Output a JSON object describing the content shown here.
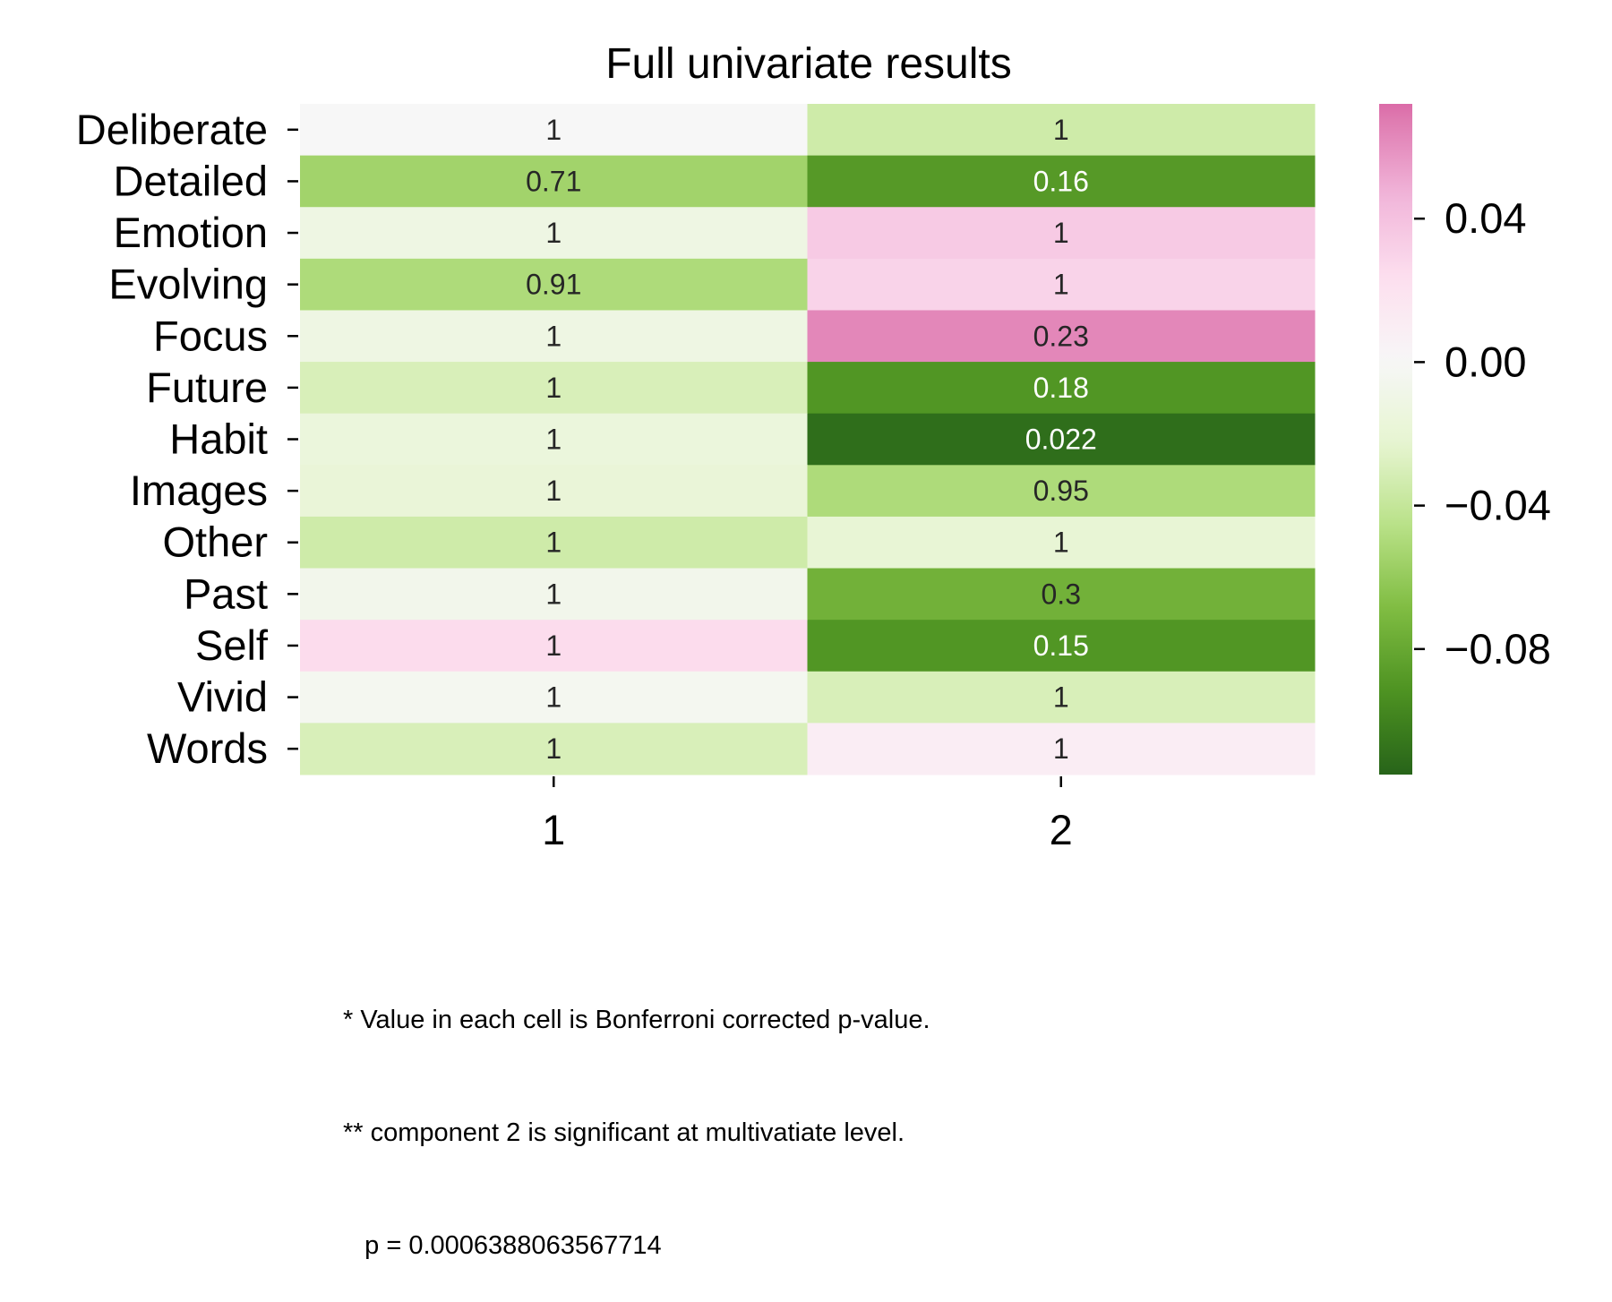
{
  "chart_data": {
    "type": "heatmap",
    "title": "Full univariate results",
    "rows": [
      "Deliberate",
      "Detailed",
      "Emotion",
      "Evolving",
      "Focus",
      "Future",
      "Habit",
      "Images",
      "Other",
      "Past",
      "Self",
      "Vivid",
      "Words"
    ],
    "columns": [
      "1",
      "2"
    ],
    "values": [
      [
        0.0,
        -0.035
      ],
      [
        -0.055,
        -0.088
      ],
      [
        -0.012,
        0.035
      ],
      [
        -0.05,
        0.03
      ],
      [
        -0.012,
        0.063
      ],
      [
        -0.03,
        -0.09
      ],
      [
        -0.016,
        -0.11
      ],
      [
        -0.018,
        -0.05
      ],
      [
        -0.035,
        -0.02
      ],
      [
        -0.007,
        -0.075
      ],
      [
        0.025,
        -0.09
      ],
      [
        -0.004,
        -0.03
      ],
      [
        -0.03,
        0.01
      ]
    ],
    "annotations": [
      [
        "1",
        "1"
      ],
      [
        "0.71",
        "0.16"
      ],
      [
        "1",
        "1"
      ],
      [
        "0.91",
        "1"
      ],
      [
        "1",
        "0.23"
      ],
      [
        "1",
        "0.18"
      ],
      [
        "1",
        "0.022"
      ],
      [
        "1",
        "0.95"
      ],
      [
        "1",
        "1"
      ],
      [
        "1",
        "0.3"
      ],
      [
        "1",
        "0.15"
      ],
      [
        "1",
        "1"
      ],
      [
        "1",
        "1"
      ]
    ],
    "colorbar": {
      "colormap": "PiYG",
      "vmin": -0.115,
      "vmax": 0.072,
      "center": 0,
      "ticks": [
        0.04,
        0.0,
        -0.04,
        -0.08
      ],
      "tick_labels": [
        "0.04",
        "0.00",
        "−0.04",
        "−0.08"
      ]
    },
    "grid": false
  },
  "footnotes": [
    "* Value in each cell is Bonferroni corrected p-value.",
    "** component 2 is significant at multivatiate level.",
    "   p = 0.0006388063567714"
  ]
}
